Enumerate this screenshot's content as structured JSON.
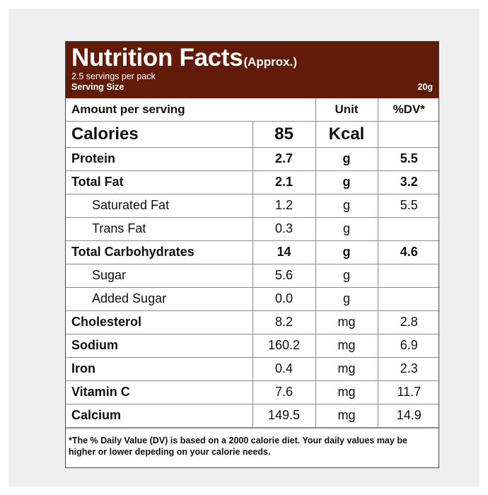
{
  "header": {
    "title": "Nutrition Facts",
    "title_suffix": "(Approx.)",
    "servings_per_pack": "2.5 servings per pack",
    "serving_size_label": "Serving Size",
    "serving_size_value": "20g"
  },
  "columns": {
    "amount": "Amount per serving",
    "unit": "Unit",
    "dv": "%DV*"
  },
  "calories": {
    "label": "Calories",
    "value": "85",
    "unit": "Kcal",
    "dv": ""
  },
  "rows": [
    {
      "label": "Protein",
      "value": "2.7",
      "unit": "g",
      "dv": "5.5"
    },
    {
      "label": "Total Fat",
      "value": "2.1",
      "unit": "g",
      "dv": "3.2"
    },
    {
      "label": "Saturated Fat",
      "value": "1.2",
      "unit": "g",
      "dv": "5.5"
    },
    {
      "label": "Trans Fat",
      "value": "0.3",
      "unit": "g",
      "dv": ""
    },
    {
      "label": "Total Carbohydrates",
      "value": "14",
      "unit": "g",
      "dv": "4.6"
    },
    {
      "label": "Sugar",
      "value": "5.6",
      "unit": "g",
      "dv": ""
    },
    {
      "label": "Added Sugar",
      "value": "0.0",
      "unit": "g",
      "dv": ""
    },
    {
      "label": "Cholesterol",
      "value": "8.2",
      "unit": "mg",
      "dv": "2.8"
    },
    {
      "label": "Sodium",
      "value": "160.2",
      "unit": "mg",
      "dv": "6.9"
    },
    {
      "label": "Iron",
      "value": "0.4",
      "unit": "mg",
      "dv": "2.3"
    },
    {
      "label": "Vitamin C",
      "value": "7.6",
      "unit": "mg",
      "dv": "11.7"
    },
    {
      "label": "Calcium",
      "value": "149.5",
      "unit": "mg",
      "dv": "14.9"
    }
  ],
  "footnote": "*The % Daily Value (DV) is based on a 2000 calorie diet. Your daily values may be higher or lower depeding on your calorie needs.",
  "colors": {
    "header_bg": "#621a09",
    "header_text": "#ffffff",
    "frame_bg": "#efefef"
  }
}
